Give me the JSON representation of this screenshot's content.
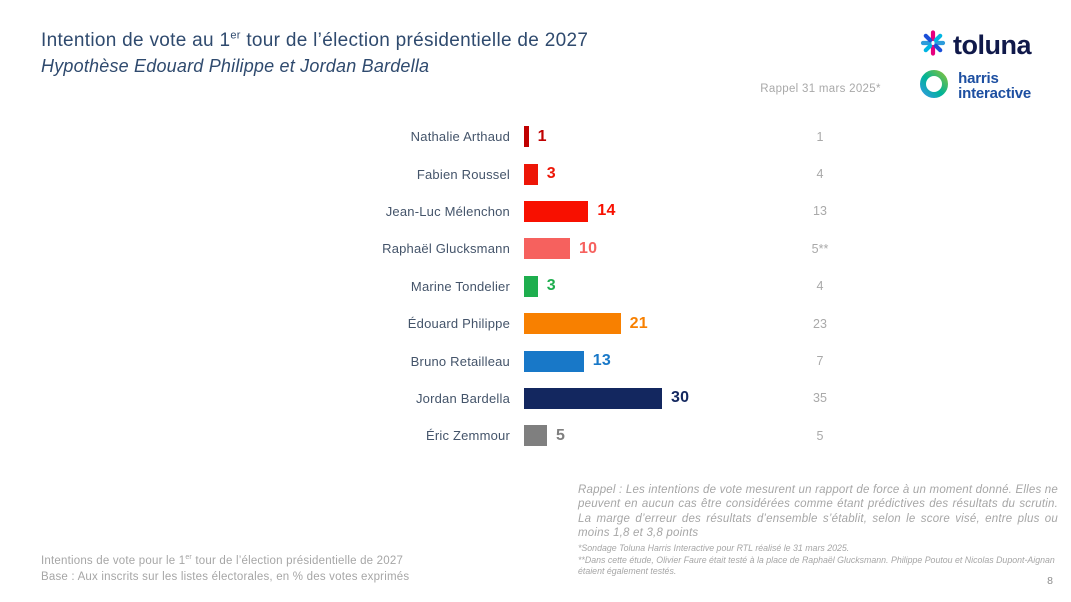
{
  "header": {
    "title_part1": "Intention de vote au 1",
    "title_sup": "er",
    "title_part2": " tour de l’élection présidentielle de 2027",
    "subtitle": "Hypothèse Edouard Philippe et Jordan Bardella"
  },
  "logos": {
    "toluna_text": "toluna",
    "harris_line1": "harris",
    "harris_line2": "interactive"
  },
  "rappel_header": "Rappel 31 mars 2025*",
  "chart_data": {
    "type": "bar",
    "orientation": "horizontal",
    "title": "Intention de vote au 1er tour de l’élection présidentielle de 2027",
    "subtitle": "Hypothèse Edouard Philippe et Jordan Bardella",
    "unit": "% des votes exprimés",
    "grid": false,
    "legend": "none",
    "xlim": [
      0,
      35
    ],
    "categories": [
      "Nathalie Arthaud",
      "Fabien Roussel",
      "Jean-Luc Mélenchon",
      "Raphaël Glucksmann",
      "Marine Tondelier",
      "Édouard Philippe",
      "Bruno Retailleau",
      "Jordan Bardella",
      "Éric Zemmour"
    ],
    "series": [
      {
        "name": "Intention de vote 2027 (%)",
        "values": [
          1,
          3,
          14,
          10,
          3,
          21,
          13,
          30,
          5
        ]
      },
      {
        "name": "Rappel 31 mars 2025*",
        "values": [
          "1",
          "4",
          "13",
          "5**",
          "4",
          "23",
          "7",
          "35",
          "5"
        ]
      }
    ],
    "bar_colors": [
      "#c00000",
      "#ed1607",
      "#f81000",
      "#f6615e",
      "#1eae4e",
      "#f88000",
      "#1878c8",
      "#13275f",
      "#7f7f7f"
    ]
  },
  "footer_left": {
    "line1_pre": "Intentions de vote pour le 1",
    "line1_sup": "er",
    "line1_post": " tour de l’élection présidentielle de 2027",
    "line2": "Base : Aux inscrits sur les listes électorales, en % des votes exprimés"
  },
  "footer_right": {
    "rappel_note": "Rappel : Les intentions de vote mesurent un rapport de force à un moment donné. Elles ne peuvent en aucun cas être considérées comme étant prédictives des résultats du scrutin. La marge d’erreur des résultats d’ensemble s’établit, selon le score visé, entre plus ou moins 1,8 et 3,8 points",
    "footnote1": "*Sondage Toluna Harris Interactive pour RTL réalisé le 31 mars 2025.",
    "footnote2": "**Dans cette étude, Olivier Faure était testé à la place de Raphaël Glucksmann. Philippe Poutou et Nicolas Dupont-Aignan étaient également testés."
  },
  "page_number": "8"
}
